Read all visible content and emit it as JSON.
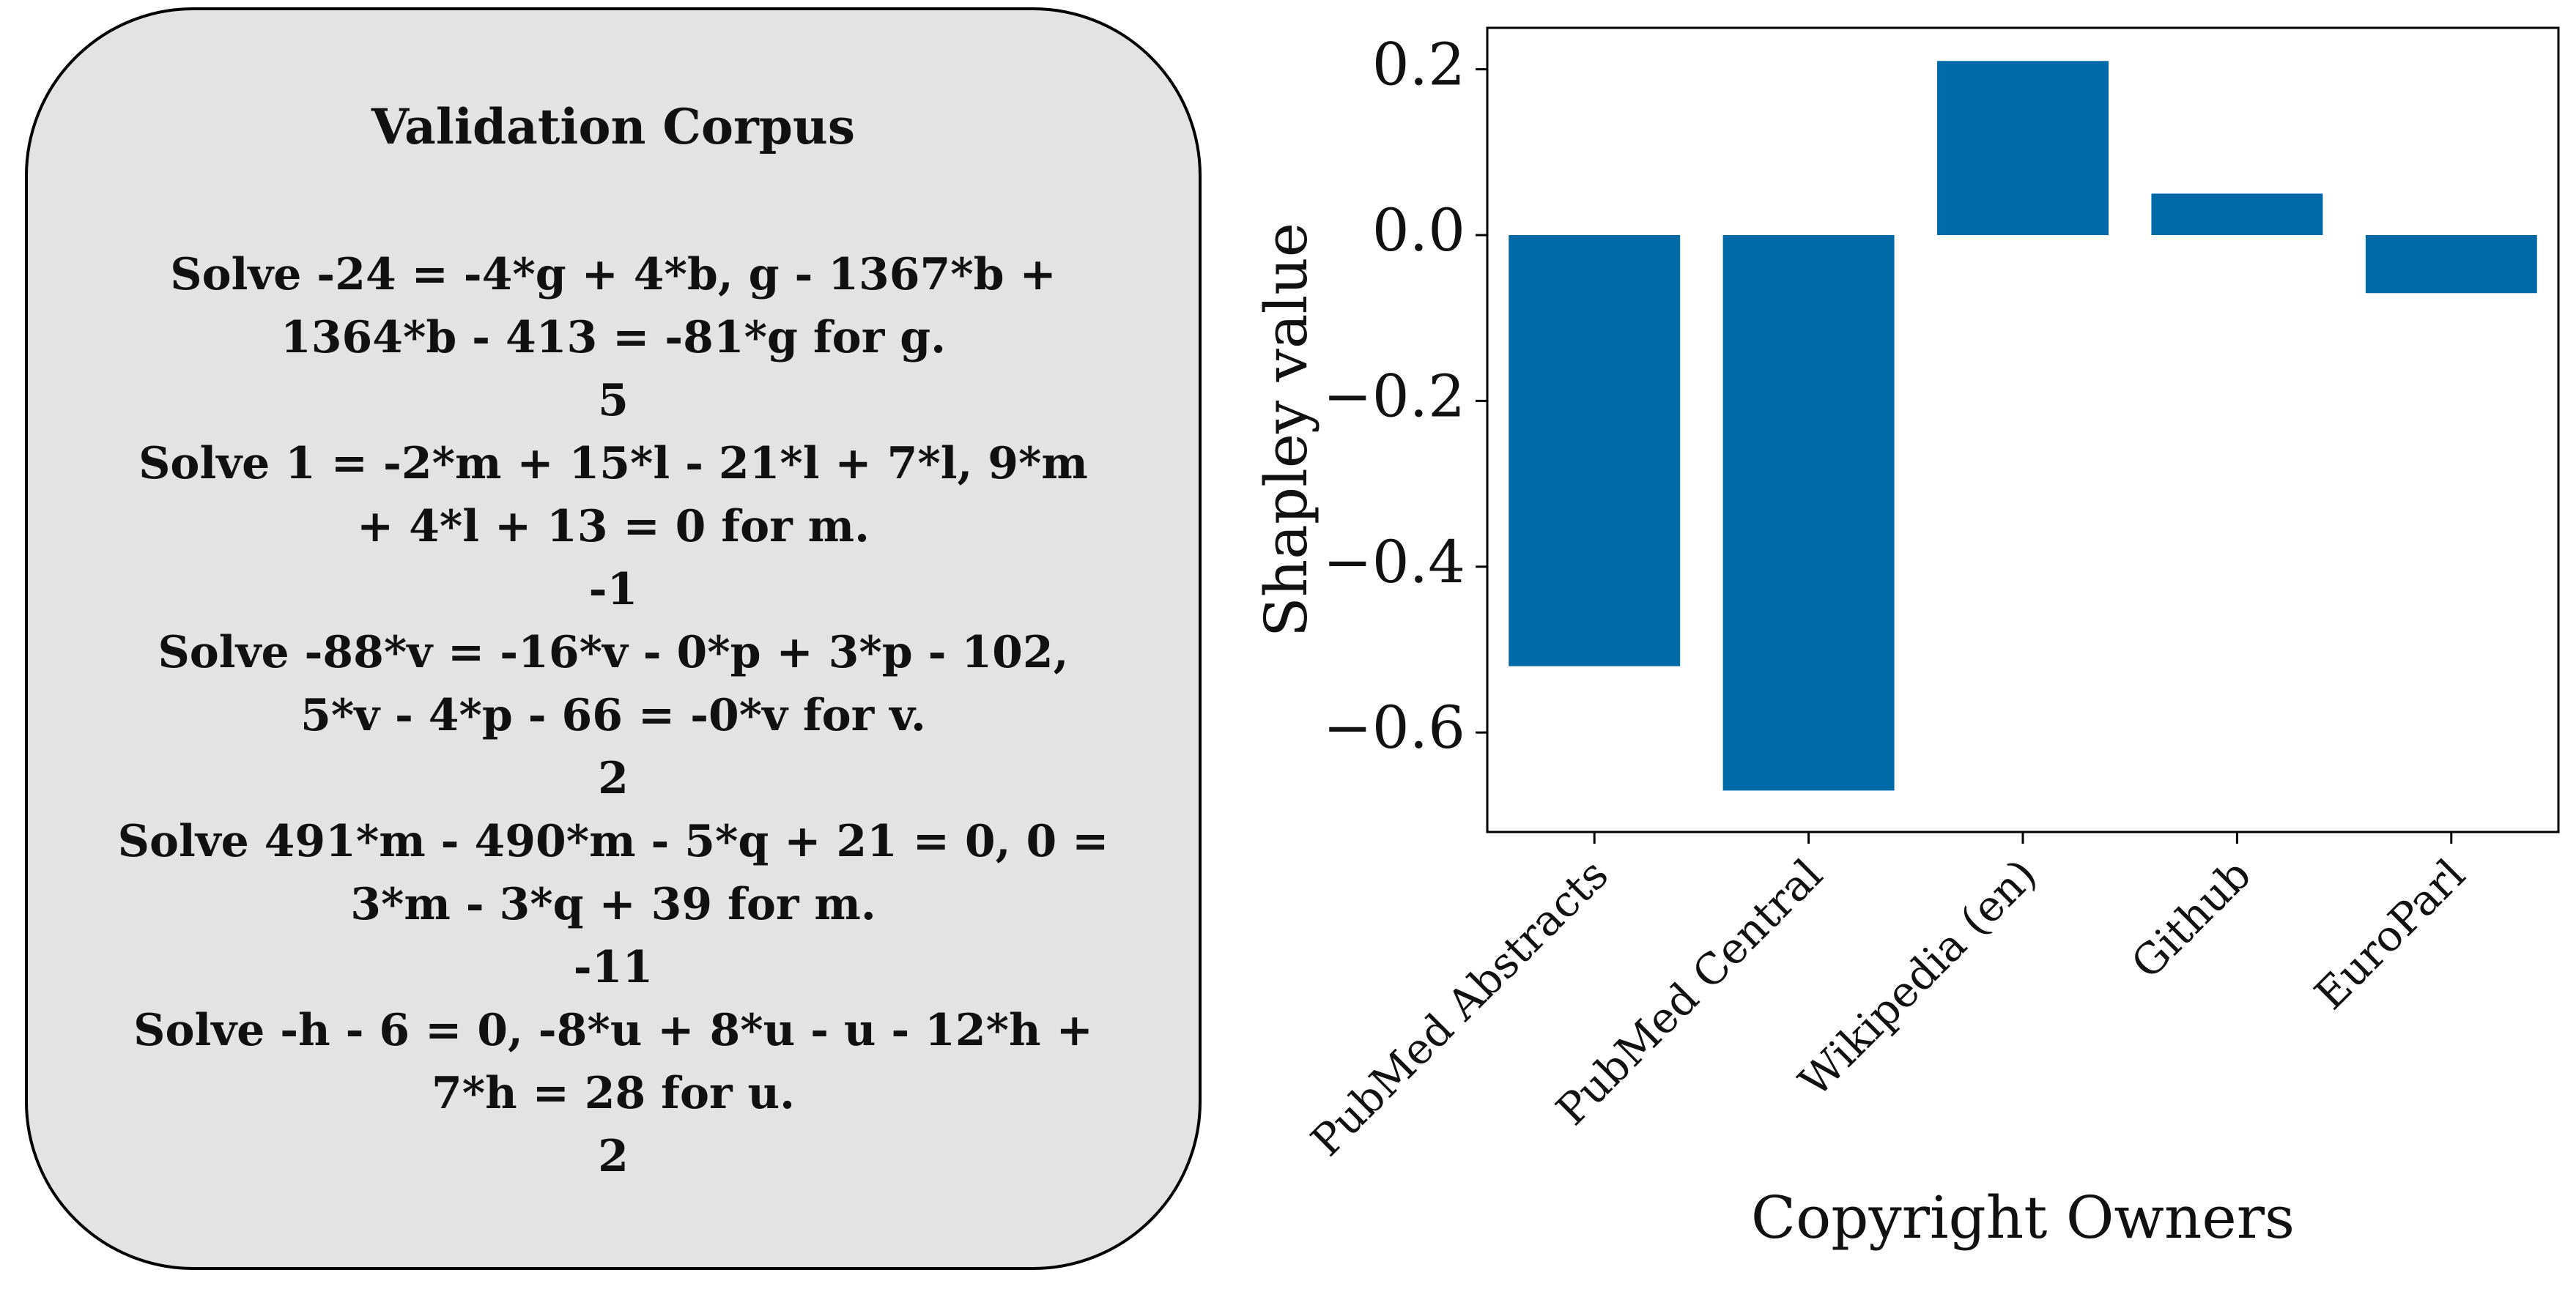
{
  "corpus": {
    "title": "Validation Corpus",
    "items": [
      {
        "question": "Solve -24 = -4*g + 4*b, g - 1367*b + 1364*b - 413 = -81*g for g.",
        "answer": "5"
      },
      {
        "question": "Solve 1 = -2*m + 15*l - 21*l + 7*l, 9*m + 4*l + 13 = 0 for m.",
        "answer": "-1"
      },
      {
        "question": "Solve -88*v = -16*v - 0*p + 3*p - 102, 5*v - 4*p - 66 = -0*v for v.",
        "answer": "2"
      },
      {
        "question": "Solve 491*m - 490*m - 5*q + 21 = 0, 0 = 3*m - 3*q + 39 for m.",
        "answer": "-11"
      },
      {
        "question": "Solve -h - 6 = 0, -8*u + 8*u - u - 12*h + 7*h = 28 for u.",
        "answer": "2"
      }
    ]
  },
  "chart_data": {
    "type": "bar",
    "categories": [
      "PubMed Abstracts",
      "PubMed Central",
      "Wikipedia (en)",
      "Github",
      "EuroParl"
    ],
    "values": [
      -0.52,
      -0.67,
      0.21,
      0.05,
      -0.07
    ],
    "xlabel": "Copyright Owners",
    "ylabel": "Shapley value",
    "ylim": [
      -0.72,
      0.25
    ],
    "yticks": [
      0.2,
      0.0,
      -0.2,
      -0.4,
      -0.6
    ],
    "ytick_labels": [
      "0.2",
      "0.0",
      "−0.2",
      "−0.4",
      "−0.6"
    ],
    "grid": false,
    "bar_color": "#0069a8"
  }
}
